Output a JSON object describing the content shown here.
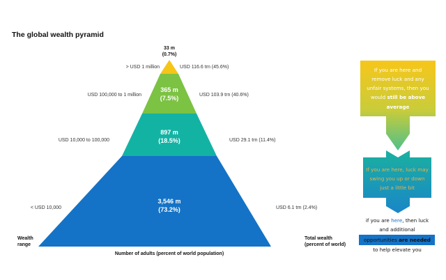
{
  "title": "The global wealth pyramid",
  "tiers": [
    {
      "adults": "33 m",
      "pct": "(0.7%)",
      "range": "> USD 1 million",
      "wealth": "USD 116.6 trn (45.6%)",
      "color": "#f5c518"
    },
    {
      "adults": "365 m",
      "pct": "(7.5%)",
      "range": "USD 100,000 to 1 million",
      "wealth": "USD 103.9 trn (40.6%)",
      "color": "#7cc243"
    },
    {
      "adults": "897 m",
      "pct": "(18.5%)",
      "range": "USD 10,000 to 100,000",
      "wealth": "USD 29.1 trn (11.4%)",
      "color": "#13b3a4"
    },
    {
      "adults": "3,546 m",
      "pct": "(73.2%)",
      "range": "< USD 10,000",
      "wealth": "USD 6.1 trn (2.4%)",
      "color": "#1473c6"
    }
  ],
  "axis": {
    "wealth_range_line1": "Wealth",
    "wealth_range_line2": "range",
    "total_wealth_line1": "Total wealth",
    "total_wealth_line2": "(percent of world)",
    "bottom_label": "Number of adults (percent of world population)"
  },
  "annotations": {
    "box1_lines": [
      "If you are here and",
      "remove luck and any",
      "unfair systems, then you"
    ],
    "box1_line4_pre": "would ",
    "box1_line4_bold": "still be above",
    "box1_line5_bold": "average",
    "box2_lines": [
      "If you are here, luck may",
      "swing you up or down",
      "just a little bit"
    ],
    "box3_line1_pre": "if you are ",
    "box3_line1_hl": "here",
    "box3_line1_post": ", then luck",
    "box3_line2": "and  additional",
    "box3_line3_pre": "opportunities ",
    "box3_line3_bold": "are needed",
    "box3_line4": "to help elevate you"
  },
  "colors": {
    "arrow_top": "#f5c518",
    "arrow_bottom": "#13b3a4",
    "box3": "#1473c6"
  }
}
